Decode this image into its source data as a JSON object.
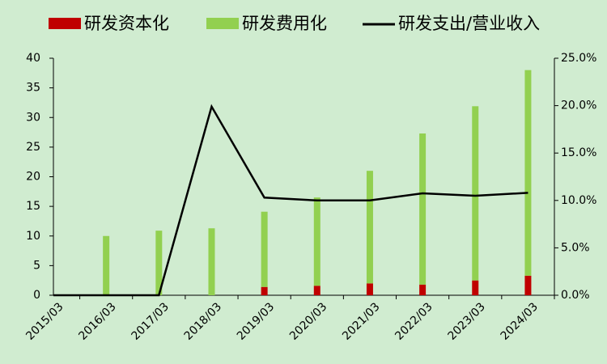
{
  "chart_data": {
    "type": "bar_line",
    "categories": [
      "2015/03",
      "2016/03",
      "2017/03",
      "2018/03",
      "2019/03",
      "2020/03",
      "2021/03",
      "2022/03",
      "2023/03",
      "2024/03"
    ],
    "series": [
      {
        "name": "研发资本化",
        "color": "#c00000",
        "type": "bar",
        "values": [
          0,
          0,
          0,
          0,
          1.4,
          1.6,
          2.0,
          1.8,
          2.5,
          3.3
        ]
      },
      {
        "name": "研发费用化",
        "color": "#92d050",
        "type": "bar",
        "values": [
          0,
          10.0,
          10.9,
          11.3,
          12.7,
          14.9,
          19.0,
          25.5,
          29.4,
          34.7
        ]
      },
      {
        "name": "研发支出/营业收入",
        "color": "#000000",
        "type": "line",
        "axis": "y2",
        "values": [
          0,
          0,
          0,
          19.9,
          10.3,
          10.0,
          10.0,
          10.75,
          10.5,
          10.8
        ]
      }
    ],
    "ylim": [
      0,
      40
    ],
    "yticks": [
      0,
      5,
      10,
      15,
      20,
      25,
      30,
      35,
      40
    ],
    "y2lim": [
      0,
      25
    ],
    "y2ticks": [
      {
        "value": 0,
        "label": "0.0%"
      },
      {
        "value": 5,
        "label": "5.0%"
      },
      {
        "value": 10,
        "label": "10.0%"
      },
      {
        "value": 15,
        "label": "15.0%"
      },
      {
        "value": 20,
        "label": "20.0%"
      },
      {
        "value": 25,
        "label": "25.0%"
      }
    ],
    "legend": "top"
  }
}
